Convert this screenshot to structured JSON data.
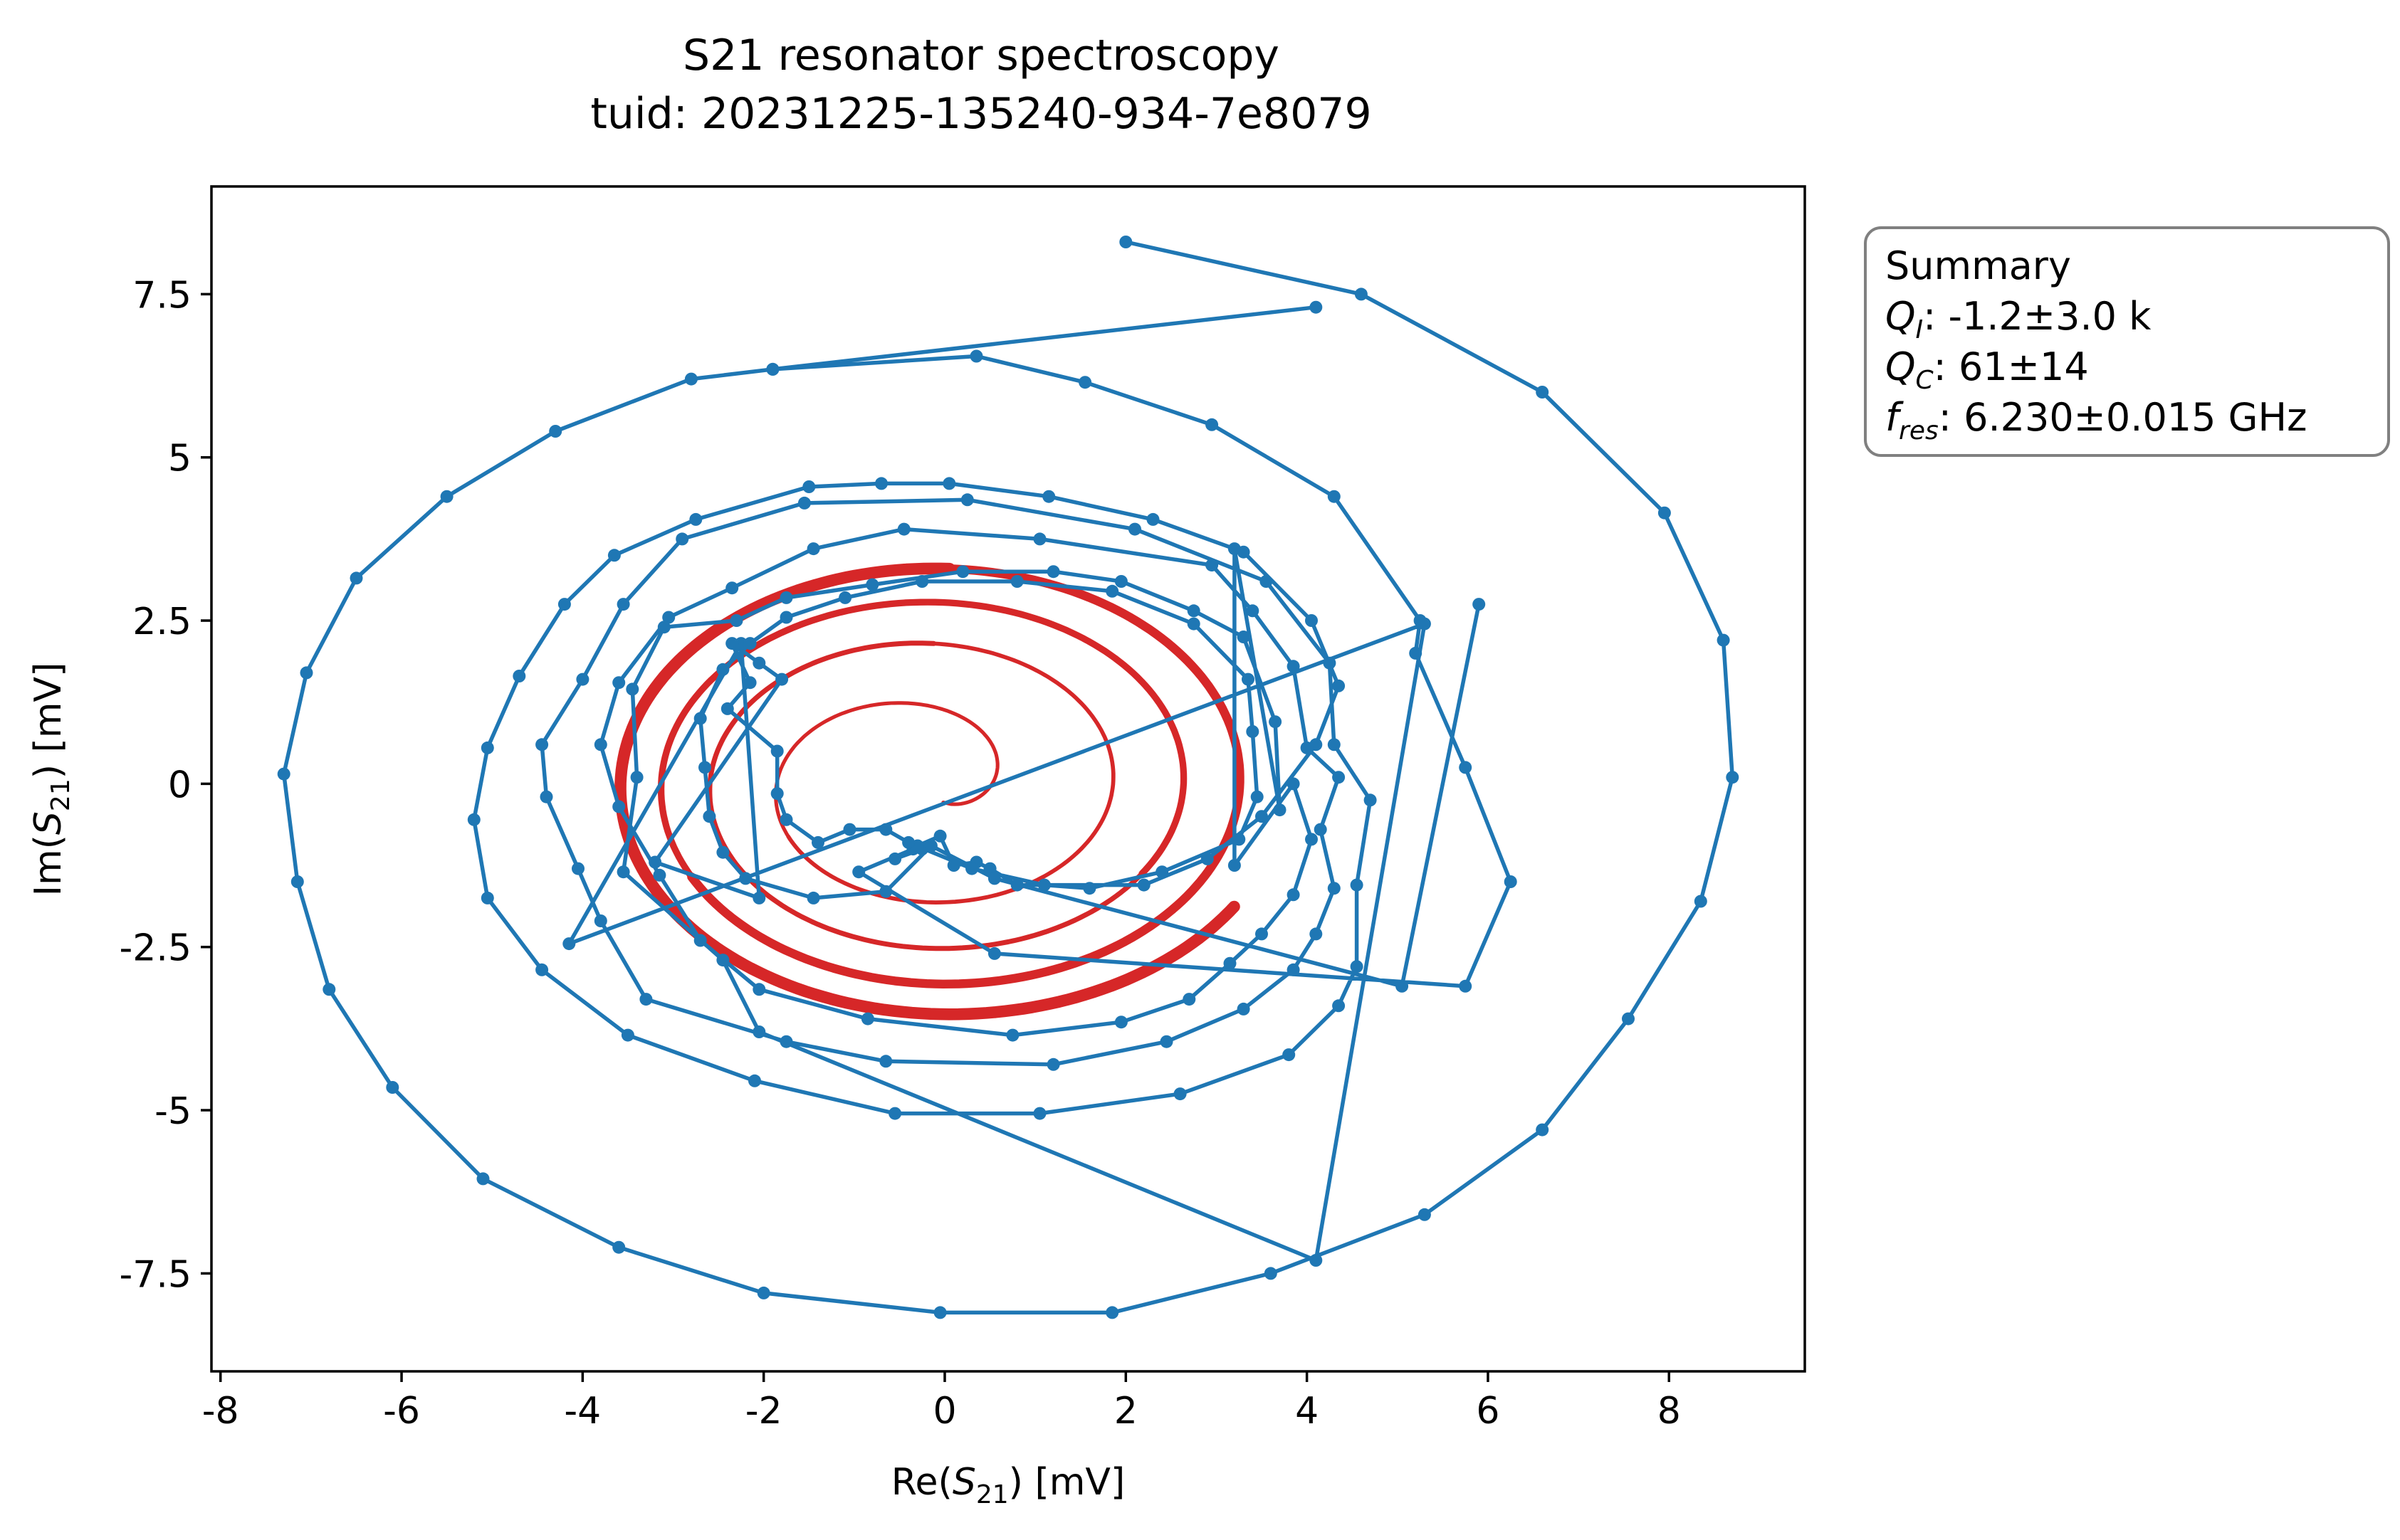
{
  "chart_data": {
    "type": "line",
    "title": [
      "S21 resonator spectroscopy",
      "tuid: 20231225-135240-934-7e8079"
    ],
    "xlabel": {
      "prefix": "Re(",
      "var": "S",
      "sub": "21",
      "suffix": ") [mV]"
    },
    "ylabel": {
      "prefix": "Im(",
      "var": "S",
      "sub": "21",
      "suffix": ") [mV]"
    },
    "xlim": [
      -8.1,
      9.5
    ],
    "ylim": [
      -9.0,
      9.15
    ],
    "xticks": [
      -8,
      -6,
      -4,
      -2,
      0,
      2,
      4,
      6,
      8
    ],
    "xtick_labels": [
      "-8",
      "-6",
      "-4",
      "-2",
      "0",
      "2",
      "4",
      "6",
      "8"
    ],
    "yticks": [
      -7.5,
      -5,
      -2.5,
      0,
      2.5,
      5,
      7.5
    ],
    "ytick_labels": [
      "-7.5",
      "-5",
      "-2.5",
      "0",
      "2.5",
      "5",
      "7.5"
    ],
    "grid": false,
    "series": [
      {
        "role": "measurement",
        "color": "#1f77b4",
        "marker": "circle",
        "points": [
          [
            2.0,
            8.3
          ],
          [
            4.6,
            7.5
          ],
          [
            6.6,
            6.0
          ],
          [
            7.95,
            4.15
          ],
          [
            8.6,
            2.2
          ],
          [
            8.7,
            0.1
          ],
          [
            8.35,
            -1.8
          ],
          [
            7.55,
            -3.6
          ],
          [
            6.6,
            -5.3
          ],
          [
            5.3,
            -6.6
          ],
          [
            3.6,
            -7.5
          ],
          [
            1.85,
            -8.1
          ],
          [
            -0.05,
            -8.1
          ],
          [
            -2.0,
            -7.8
          ],
          [
            -3.6,
            -7.1
          ],
          [
            -5.1,
            -6.05
          ],
          [
            -6.1,
            -4.65
          ],
          [
            -6.8,
            -3.15
          ],
          [
            -7.15,
            -1.5
          ],
          [
            -7.3,
            0.15
          ],
          [
            -7.05,
            1.7
          ],
          [
            -6.5,
            3.15
          ],
          [
            -5.5,
            4.4
          ],
          [
            -4.3,
            5.4
          ],
          [
            -2.8,
            6.2
          ],
          [
            -1.9,
            6.35
          ],
          [
            4.1,
            7.3
          ],
          [
            -1.9,
            6.35
          ],
          [
            0.35,
            6.55
          ],
          [
            1.55,
            6.15
          ],
          [
            2.95,
            5.5
          ],
          [
            4.3,
            4.4
          ],
          [
            5.25,
            2.5
          ],
          [
            5.2,
            2.0
          ],
          [
            5.75,
            0.25
          ],
          [
            6.25,
            -1.5
          ],
          [
            5.75,
            -3.1
          ],
          [
            0.55,
            -2.6
          ],
          [
            -0.95,
            -1.35
          ],
          [
            -0.35,
            -1.0
          ],
          [
            -0.25,
            -1.0
          ],
          [
            -0.55,
            -1.15
          ],
          [
            -0.3,
            -0.95
          ],
          [
            -0.05,
            -0.8
          ],
          [
            0.1,
            -1.25
          ],
          [
            0.35,
            -1.2
          ],
          [
            0.5,
            -1.3
          ],
          [
            0.8,
            -1.55
          ],
          [
            2.2,
            -1.55
          ],
          [
            2.9,
            -1.15
          ],
          [
            3.5,
            -0.5
          ],
          [
            4.1,
            0.6
          ],
          [
            4.35,
            1.5
          ],
          [
            4.05,
            2.5
          ],
          [
            3.3,
            3.55
          ],
          [
            2.3,
            4.05
          ],
          [
            1.15,
            4.4
          ],
          [
            0.05,
            4.6
          ],
          [
            -0.7,
            4.6
          ],
          [
            -1.5,
            4.55
          ],
          [
            -2.75,
            4.05
          ],
          [
            -3.65,
            3.5
          ],
          [
            -4.2,
            2.75
          ],
          [
            -4.7,
            1.65
          ],
          [
            -5.05,
            0.55
          ],
          [
            -5.2,
            -0.55
          ],
          [
            -5.05,
            -1.75
          ],
          [
            -4.45,
            -2.85
          ],
          [
            -3.5,
            -3.85
          ],
          [
            -2.1,
            -4.55
          ],
          [
            -0.55,
            -5.05
          ],
          [
            1.05,
            -5.05
          ],
          [
            2.6,
            -4.75
          ],
          [
            3.8,
            -4.15
          ],
          [
            4.35,
            -3.4
          ],
          [
            4.55,
            -2.8
          ],
          [
            4.55,
            -1.55
          ],
          [
            4.7,
            -0.25
          ],
          [
            4.3,
            0.6
          ],
          [
            4.25,
            1.85
          ],
          [
            3.55,
            3.1
          ],
          [
            2.1,
            3.9
          ],
          [
            0.25,
            4.35
          ],
          [
            -1.55,
            4.3
          ],
          [
            -2.9,
            3.75
          ],
          [
            -3.55,
            2.75
          ],
          [
            -4.0,
            1.6
          ],
          [
            -4.45,
            0.6
          ],
          [
            -4.4,
            -0.2
          ],
          [
            -4.05,
            -1.3
          ],
          [
            -3.8,
            -2.1
          ],
          [
            -3.3,
            -3.3
          ],
          [
            -1.75,
            -3.95
          ],
          [
            -0.65,
            -4.25
          ],
          [
            1.2,
            -4.3
          ],
          [
            2.45,
            -3.95
          ],
          [
            3.3,
            -3.45
          ],
          [
            3.85,
            -2.85
          ],
          [
            4.1,
            -2.3
          ],
          [
            4.3,
            -1.6
          ],
          [
            4.15,
            -0.7
          ],
          [
            4.35,
            0.1
          ],
          [
            4.0,
            0.55
          ],
          [
            3.85,
            1.8
          ],
          [
            3.4,
            2.65
          ],
          [
            2.95,
            3.35
          ],
          [
            1.05,
            3.75
          ],
          [
            -0.45,
            3.9
          ],
          [
            -1.45,
            3.6
          ],
          [
            -2.35,
            3.0
          ],
          [
            -3.05,
            2.55
          ],
          [
            -3.6,
            1.55
          ],
          [
            -3.8,
            0.6
          ],
          [
            -3.6,
            -0.35
          ],
          [
            -3.15,
            -1.4
          ],
          [
            -2.7,
            -2.4
          ],
          [
            -2.05,
            -3.15
          ],
          [
            -0.85,
            -3.6
          ],
          [
            0.75,
            -3.85
          ],
          [
            1.95,
            -3.65
          ],
          [
            2.7,
            -3.3
          ],
          [
            3.15,
            -2.75
          ],
          [
            3.5,
            -2.3
          ],
          [
            3.85,
            -1.7
          ],
          [
            4.05,
            -0.85
          ],
          [
            3.85,
            0.0
          ],
          [
            3.2,
            -1.25
          ],
          [
            3.2,
            3.6
          ],
          [
            3.7,
            -0.4
          ],
          [
            3.65,
            0.95
          ],
          [
            3.3,
            2.25
          ],
          [
            2.75,
            2.65
          ],
          [
            1.95,
            3.1
          ],
          [
            1.2,
            3.25
          ],
          [
            0.2,
            3.25
          ],
          [
            -0.8,
            3.05
          ],
          [
            -1.75,
            2.85
          ],
          [
            -2.3,
            2.5
          ],
          [
            -3.1,
            2.4
          ],
          [
            -3.45,
            1.45
          ],
          [
            -3.4,
            0.1
          ],
          [
            -3.55,
            -1.35
          ],
          [
            -2.45,
            -2.7
          ],
          [
            -2.05,
            -3.8
          ],
          [
            4.1,
            -7.3
          ],
          [
            5.3,
            2.45
          ],
          [
            -4.15,
            -2.45
          ],
          [
            -2.25,
            2.15
          ],
          [
            -2.05,
            -1.75
          ],
          [
            -3.2,
            -1.2
          ],
          [
            -1.8,
            1.6
          ],
          [
            -2.05,
            1.85
          ],
          [
            -2.35,
            2.15
          ],
          [
            -2.15,
            1.55
          ],
          [
            -2.4,
            1.15
          ],
          [
            -1.85,
            0.5
          ],
          [
            -1.85,
            -0.15
          ],
          [
            -1.75,
            -0.55
          ],
          [
            -1.4,
            -0.9
          ],
          [
            -1.05,
            -0.7
          ],
          [
            -0.65,
            -0.7
          ],
          [
            -0.4,
            -0.9
          ],
          [
            0.3,
            -1.3
          ],
          [
            1.1,
            -1.55
          ],
          [
            1.6,
            -1.6
          ],
          [
            2.4,
            -1.35
          ],
          [
            3.25,
            -0.85
          ],
          [
            3.45,
            -0.2
          ],
          [
            3.4,
            0.8
          ],
          [
            3.35,
            1.6
          ],
          [
            2.75,
            2.45
          ],
          [
            1.85,
            2.95
          ],
          [
            0.8,
            3.1
          ],
          [
            -0.25,
            3.1
          ],
          [
            -1.1,
            2.85
          ],
          [
            -1.75,
            2.55
          ],
          [
            -2.15,
            2.15
          ],
          [
            -2.45,
            1.75
          ],
          [
            -2.7,
            1.0
          ],
          [
            -2.65,
            0.25
          ],
          [
            -2.6,
            -0.5
          ],
          [
            -2.45,
            -1.05
          ],
          [
            -2.2,
            -1.45
          ],
          [
            -1.45,
            -1.75
          ],
          [
            -0.65,
            -1.65
          ],
          [
            -0.15,
            -0.95
          ],
          [
            0.55,
            -1.45
          ],
          [
            5.05,
            -3.1
          ],
          [
            5.9,
            2.75
          ]
        ]
      },
      {
        "role": "fit",
        "color": "#d62728",
        "marker": "none"
      }
    ],
    "summary_box": {
      "title": "Summary",
      "lines": [
        {
          "var": "Q",
          "sub": "I",
          "value": ": -1.2±3.0 k"
        },
        {
          "var": "Q",
          "sub": "C",
          "value": ": 61±14"
        },
        {
          "var": "f",
          "sub": "res",
          "value": ": 6.230±0.015 GHz"
        }
      ]
    }
  }
}
